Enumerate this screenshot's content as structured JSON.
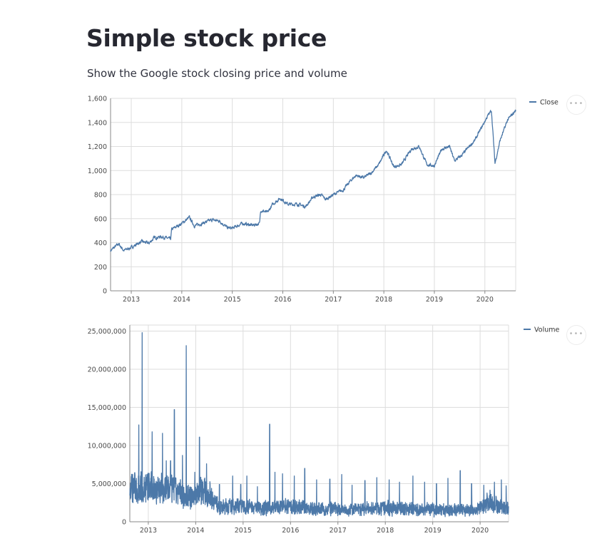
{
  "header": {
    "title": "Simple stock price",
    "subtitle": "Show the Google stock closing price and volume"
  },
  "colors": {
    "line": "#4c78a8",
    "grid": "#dddddd",
    "axis": "#888888"
  },
  "more_icon": "ellipsis-icon",
  "more_label": "•••",
  "chart_data": [
    {
      "type": "line",
      "title": "",
      "legend": {
        "label": "Close",
        "placement": "top-right"
      },
      "xlabel": "",
      "ylabel": "",
      "xlim": [
        2012.59,
        2020.61
      ],
      "ylim": [
        0,
        1600
      ],
      "yticks": [
        0,
        200,
        400,
        600,
        800,
        1000,
        1200,
        1400,
        1600
      ],
      "ytick_labels": [
        "0",
        "200",
        "400",
        "600",
        "800",
        "1,000",
        "1,200",
        "1,400",
        "1,600"
      ],
      "xticks": [
        2013,
        2014,
        2015,
        2016,
        2017,
        2018,
        2019,
        2020
      ],
      "xtick_labels": [
        "2013",
        "2014",
        "2015",
        "2016",
        "2017",
        "2018",
        "2019",
        "2020"
      ],
      "grid": true,
      "noise": 12,
      "x": [
        2012.59,
        2012.75,
        2012.85,
        2013.0,
        2013.2,
        2013.35,
        2013.45,
        2013.6,
        2013.78,
        2013.8,
        2014.0,
        2014.15,
        2014.25,
        2014.4,
        2014.6,
        2014.75,
        2014.9,
        2015.0,
        2015.2,
        2015.4,
        2015.54,
        2015.56,
        2015.7,
        2015.8,
        2015.95,
        2016.1,
        2016.3,
        2016.45,
        2016.6,
        2016.75,
        2016.85,
        2017.0,
        2017.2,
        2017.35,
        2017.45,
        2017.6,
        2017.75,
        2017.9,
        2018.05,
        2018.2,
        2018.35,
        2018.55,
        2018.7,
        2018.85,
        2019.0,
        2019.15,
        2019.3,
        2019.4,
        2019.55,
        2019.65,
        2019.8,
        2020.05,
        2020.13,
        2020.2,
        2020.3,
        2020.45,
        2020.61
      ],
      "y": [
        335,
        390,
        335,
        360,
        410,
        395,
        440,
        450,
        430,
        510,
        560,
        610,
        540,
        560,
        590,
        580,
        525,
        520,
        560,
        545,
        560,
        670,
        650,
        720,
        770,
        720,
        720,
        700,
        780,
        800,
        760,
        800,
        840,
        920,
        960,
        940,
        980,
        1050,
        1170,
        1030,
        1050,
        1180,
        1200,
        1050,
        1040,
        1180,
        1200,
        1080,
        1130,
        1180,
        1250,
        1450,
        1500,
        1060,
        1250,
        1420,
        1500
      ]
    },
    {
      "type": "line",
      "title": "",
      "legend": {
        "label": "Volume",
        "placement": "top-right"
      },
      "xlabel": "",
      "ylabel": "",
      "xlim": [
        2012.61,
        2020.6
      ],
      "ylim": [
        0,
        25800000
      ],
      "yticks": [
        0,
        5000000,
        10000000,
        15000000,
        20000000,
        25000000
      ],
      "ytick_labels": [
        "0",
        "5,000,000",
        "10,000,000",
        "15,000,000",
        "20,000,000",
        "25,000,000"
      ],
      "xticks": [
        2013,
        2014,
        2015,
        2016,
        2017,
        2018,
        2019,
        2020
      ],
      "xtick_labels": [
        "2013",
        "2014",
        "2015",
        "2016",
        "2017",
        "2018",
        "2019",
        "2020"
      ],
      "grid": true,
      "noise": 1100000,
      "x": [
        2012.61,
        2013.0,
        2013.5,
        2013.9,
        2014.1,
        2014.3,
        2014.5,
        2015.0,
        2015.5,
        2016.0,
        2016.5,
        2017.0,
        2017.5,
        2018.0,
        2018.5,
        2019.0,
        2019.5,
        2019.9,
        2020.2,
        2020.4,
        2020.6
      ],
      "y": [
        4500000,
        4500000,
        4200000,
        3200000,
        4200000,
        3500000,
        1900000,
        2100000,
        1800000,
        2000000,
        1700000,
        1600000,
        1600000,
        1800000,
        1700000,
        1600000,
        1500000,
        1400000,
        2800000,
        2000000,
        1800000
      ],
      "spikes": {
        "x": [
          2012.8,
          2012.87,
          2013.08,
          2013.3,
          2013.38,
          2013.47,
          2013.55,
          2013.72,
          2013.8,
          2013.98,
          2014.08,
          2014.23,
          2014.5,
          2014.78,
          2014.95,
          2015.08,
          2015.3,
          2015.56,
          2015.67,
          2015.83,
          2016.08,
          2016.3,
          2016.55,
          2016.83,
          2017.08,
          2017.3,
          2017.57,
          2017.82,
          2018.08,
          2018.3,
          2018.58,
          2018.83,
          2019.08,
          2019.32,
          2019.58,
          2019.82,
          2020.08,
          2020.3,
          2020.45,
          2020.55
        ],
        "y": [
          12700000,
          24800000,
          11800000,
          11600000,
          8000000,
          8000000,
          14700000,
          8700000,
          23100000,
          6500000,
          11100000,
          7600000,
          4900000,
          6000000,
          4900000,
          6000000,
          4600000,
          12800000,
          6500000,
          6300000,
          6000000,
          7000000,
          5500000,
          5600000,
          6200000,
          4800000,
          5400000,
          5800000,
          5500000,
          5200000,
          6000000,
          5200000,
          5000000,
          5700000,
          6700000,
          5000000,
          4800000,
          5200000,
          5500000,
          4700000
        ]
      }
    }
  ]
}
